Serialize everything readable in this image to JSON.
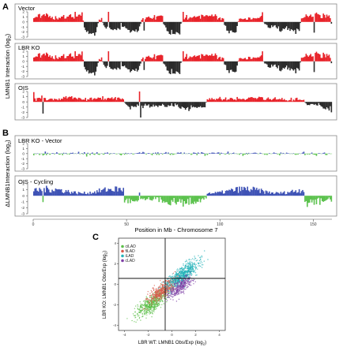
{
  "panels": {
    "A": {
      "letter": "A",
      "ylabel_main": "LMNB1 Interaction",
      "ylabel_unit": "(log",
      "ylabel_sub": "2",
      "ylabel_close": ")",
      "tracks": [
        {
          "label": "Vector"
        },
        {
          "label": "LBR KO"
        },
        {
          "label": "OIS"
        }
      ]
    },
    "B": {
      "letter": "B",
      "ylabel_main": "ΔLMNB1Interaction",
      "ylabel_unit": "(log",
      "ylabel_sub": "2",
      "ylabel_close": ")",
      "tracks": [
        {
          "label": "LBR KO - Vector"
        },
        {
          "label": "OIS - Cycling"
        }
      ]
    },
    "C": {
      "letter": "C",
      "xlabel_main": "LBR WT: LMNB1 Obs/Exp",
      "xlabel_unit": "(log",
      "xlabel_sub": "2",
      "xlabel_close": ")",
      "ylabel_main": "LBR KO: LMNB1 Obs/Exp",
      "ylabel_unit": "(log",
      "ylabel_sub": "2",
      "ylabel_close": ")"
    }
  },
  "chart_data": [
    {
      "type": "area",
      "panel": "A",
      "xlabel": "",
      "ylabel": "LMNB1 Interaction (log2)",
      "xlim": [
        0,
        160
      ],
      "ylim": [
        -3,
        2
      ],
      "yticks": [
        -3,
        -2,
        -1,
        0,
        1,
        2
      ],
      "series": [
        {
          "name": "Vector"
        },
        {
          "name": "LBR KO"
        },
        {
          "name": "OIS"
        }
      ],
      "positive_color": "#e8232a",
      "negative_color": "#2b2b2b"
    },
    {
      "type": "area",
      "panel": "B",
      "xlabel": "Position in Mb - Chromosome 7",
      "ylabel": "ΔLMNB1Interaction (log2)",
      "xlim": [
        0,
        160
      ],
      "xticks": [
        0,
        50,
        100,
        150
      ],
      "ylim": [
        -3,
        2
      ],
      "yticks": [
        -3,
        -2,
        -1,
        0,
        1,
        2
      ],
      "series": [
        {
          "name": "LBR KO - Vector"
        },
        {
          "name": "OIS - Cycling"
        }
      ],
      "positive_color": "#3e52b5",
      "negative_color": "#5cc24e",
      "xlabel_text": "Position in Mb - Chromosome 7"
    },
    {
      "type": "scatter",
      "panel": "C",
      "xlim": [
        -4.5,
        4.5
      ],
      "ylim": [
        -4.5,
        4.5
      ],
      "xticks": [
        -4,
        -2,
        0,
        2,
        4
      ],
      "yticks": [
        -4,
        -2,
        0,
        2,
        4
      ],
      "grid": false,
      "legend_position": "top-left",
      "series": [
        {
          "name": "ciLAD",
          "color": "#5cbf4a",
          "center": [
            -1.6,
            -1.8
          ]
        },
        {
          "name": "fiLAD",
          "color": "#d9584a",
          "center": [
            -0.7,
            -0.5
          ]
        },
        {
          "name": "iLAD",
          "color": "#26b3b9",
          "center": [
            0.9,
            0.9
          ]
        },
        {
          "name": "cLAD",
          "color": "#7e3fa6",
          "center": [
            0.7,
            -0.3
          ]
        }
      ]
    }
  ]
}
